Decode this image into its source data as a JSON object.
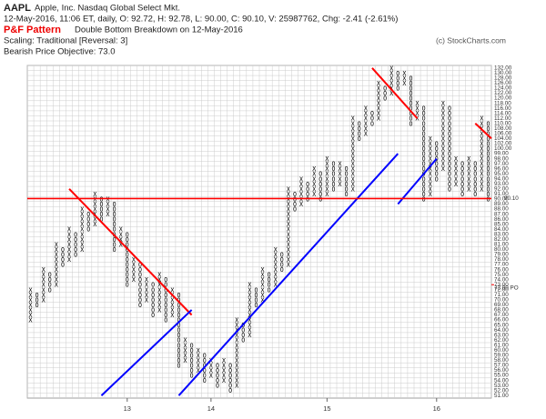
{
  "chart_data": {
    "type": "pnf",
    "symbol": "AAPL",
    "company": "Apple, Inc.  Nasdaq Global Select Mkt.",
    "quote": "12-May-2016, 11:06 ET, daily, O: 92.72, H: 92.78, L: 90.00, C: 90.10, V: 25987762, Chg: -2.41 (-2.61%)",
    "pattern_label": "P&F Pattern",
    "pattern": "Double Bottom Breakdown on 12-May-2016",
    "scaling": "Scaling: Traditional [Reversal: 3]",
    "objective": "Bearish Price Objective: 73.0",
    "copyright": "(c) StockCharts.com",
    "grid": true,
    "box_colors": {
      "X": "#000000",
      "O": "#000000"
    },
    "columns": {
      "types": [
        "X",
        "O",
        "X",
        "O",
        "X",
        "O",
        "X",
        "O",
        "X",
        "O",
        "X",
        "O",
        "X",
        "O",
        "X",
        "O",
        "X",
        "O",
        "X",
        "O",
        "X",
        "O",
        "X",
        "O",
        "X",
        "O",
        "X",
        "O",
        "X",
        "O",
        "X",
        "O",
        "X",
        "O",
        "X",
        "O",
        "X",
        "O",
        "X",
        "O",
        "X",
        "O",
        "X",
        "O",
        "X",
        "O",
        "X",
        "O",
        "X",
        "O",
        "X",
        "O",
        "X",
        "O",
        "X",
        "O",
        "X",
        "O",
        "X",
        "O",
        "X",
        "O",
        "X",
        "O",
        "X",
        "O",
        "X",
        "O",
        "X",
        "O",
        "X",
        "O"
      ],
      "low": [
        66,
        69,
        70,
        72,
        73,
        77,
        78,
        79,
        80,
        84,
        85,
        86,
        87,
        80,
        81,
        73,
        74,
        69,
        70,
        67,
        68,
        66,
        67,
        57,
        58,
        55,
        56,
        54,
        55,
        53,
        54,
        52,
        53,
        62,
        63,
        69,
        70,
        72,
        73,
        76,
        77,
        88,
        89,
        90,
        91,
        90,
        91,
        92,
        93,
        91,
        92,
        104,
        106,
        110,
        112,
        120,
        122,
        124,
        126,
        110,
        112,
        90,
        91,
        94,
        96,
        92,
        93,
        91,
        92,
        91,
        92,
        90
      ],
      "high": [
        72,
        71,
        76,
        75,
        81,
        80,
        84,
        83,
        88,
        87,
        91,
        90,
        90,
        89,
        84,
        83,
        78,
        77,
        74,
        73,
        75,
        74,
        72,
        71,
        62,
        61,
        60,
        59,
        58,
        57,
        58,
        57,
        66,
        65,
        73,
        72,
        76,
        75,
        80,
        79,
        92,
        91,
        94,
        93,
        96,
        95,
        98,
        97,
        97,
        96,
        112,
        110,
        116,
        114,
        126,
        124,
        132,
        130,
        130,
        128,
        118,
        116,
        104,
        102,
        118,
        116,
        98,
        97,
        98,
        97,
        112,
        110
      ]
    },
    "ylim": [
      51,
      132
    ],
    "yticks": [
      {
        "value": 132,
        "label": "132.00"
      },
      {
        "value": 130,
        "label": "130.00"
      },
      {
        "value": 128,
        "label": "128.00"
      },
      {
        "value": 126,
        "label": "126.00"
      },
      {
        "value": 124,
        "label": "124.00"
      },
      {
        "value": 122,
        "label": "122.00"
      },
      {
        "value": 120,
        "label": "120.00"
      },
      {
        "value": 118,
        "label": "118.00"
      },
      {
        "value": 116,
        "label": "116.00"
      },
      {
        "value": 114,
        "label": "114.00"
      },
      {
        "value": 112,
        "label": "112.00"
      },
      {
        "value": 110,
        "label": "110.00"
      },
      {
        "value": 108,
        "label": "108.00"
      },
      {
        "value": 106,
        "label": "106.00"
      },
      {
        "value": 104,
        "label": "104.00"
      },
      {
        "value": 102,
        "label": "102.00"
      },
      {
        "value": 100,
        "label": "100.00"
      },
      {
        "value": 99,
        "label": "99.00"
      },
      {
        "value": 98,
        "label": "98.00"
      },
      {
        "value": 97,
        "label": "97.00"
      },
      {
        "value": 96,
        "label": "96.00"
      },
      {
        "value": 95,
        "label": "95.00"
      },
      {
        "value": 94,
        "label": "94.00"
      },
      {
        "value": 93,
        "label": "93.00"
      },
      {
        "value": 92,
        "label": "92.00"
      },
      {
        "value": 91,
        "label": "91.00"
      },
      {
        "value": 90,
        "label": "90.00"
      },
      {
        "value": 89,
        "label": "89.00"
      },
      {
        "value": 88,
        "label": "88.00"
      },
      {
        "value": 87,
        "label": "87.00"
      },
      {
        "value": 86,
        "label": "86.00"
      },
      {
        "value": 85,
        "label": "85.00"
      },
      {
        "value": 84,
        "label": "84.00"
      },
      {
        "value": 83,
        "label": "83.00"
      },
      {
        "value": 82,
        "label": "82.00"
      },
      {
        "value": 81,
        "label": "81.00"
      },
      {
        "value": 80,
        "label": "80.00"
      },
      {
        "value": 79,
        "label": "79.00"
      },
      {
        "value": 78,
        "label": "78.00"
      },
      {
        "value": 77,
        "label": "77.00"
      },
      {
        "value": 76,
        "label": "76.00"
      },
      {
        "value": 75,
        "label": "75.00"
      },
      {
        "value": 74,
        "label": "74.00"
      },
      {
        "value": 73,
        "label": "73.00"
      },
      {
        "value": 72,
        "label": "72.00"
      },
      {
        "value": 71,
        "label": "71.00"
      },
      {
        "value": 70,
        "label": "70.00"
      },
      {
        "value": 69,
        "label": "69.00"
      },
      {
        "value": 68,
        "label": "68.00"
      },
      {
        "value": 67,
        "label": "67.00"
      },
      {
        "value": 66,
        "label": "66.00"
      },
      {
        "value": 65,
        "label": "65.00"
      },
      {
        "value": 64,
        "label": "64.00"
      },
      {
        "value": 63,
        "label": "63.00"
      },
      {
        "value": 62,
        "label": "62.00"
      },
      {
        "value": 61,
        "label": "61.00"
      },
      {
        "value": 60,
        "label": "60.00"
      },
      {
        "value": 59,
        "label": "59.00"
      },
      {
        "value": 58,
        "label": "58.00"
      },
      {
        "value": 57,
        "label": "57.00"
      },
      {
        "value": 56,
        "label": "56.00"
      },
      {
        "value": 55,
        "label": "55.00"
      },
      {
        "value": 54,
        "label": "54.00"
      },
      {
        "value": 53,
        "label": "53.00"
      },
      {
        "value": 52,
        "label": "52.00"
      },
      {
        "value": 51,
        "label": "51.00"
      }
    ],
    "xticks": [
      {
        "value": 15,
        "label": "13"
      },
      {
        "value": 28,
        "label": "14"
      },
      {
        "value": 46,
        "label": "15"
      },
      {
        "value": 63,
        "label": "16"
      }
    ],
    "last_price": {
      "value": 90.1,
      "label": "90.10",
      "color": "#ff0000"
    },
    "price_objective": {
      "value": 73,
      "label": "73.00 PO",
      "color": "#ff0000"
    },
    "trendlines": [
      {
        "color": "#ff0000",
        "x": [
          6,
          25
        ],
        "y": [
          92,
          67
        ]
      },
      {
        "color": "#ff0000",
        "x": [
          53,
          60
        ],
        "y": [
          132,
          112
        ]
      },
      {
        "color": "#ff0000",
        "x": [
          69,
          71.5
        ],
        "y": [
          110,
          104
        ]
      },
      {
        "color": "#0000ff",
        "x": [
          11,
          25
        ],
        "y": [
          51,
          68
        ]
      },
      {
        "color": "#0000ff",
        "x": [
          23,
          57
        ],
        "y": [
          51,
          99
        ]
      },
      {
        "color": "#0000ff",
        "x": [
          57,
          63
        ],
        "y": [
          89,
          98
        ]
      }
    ]
  }
}
